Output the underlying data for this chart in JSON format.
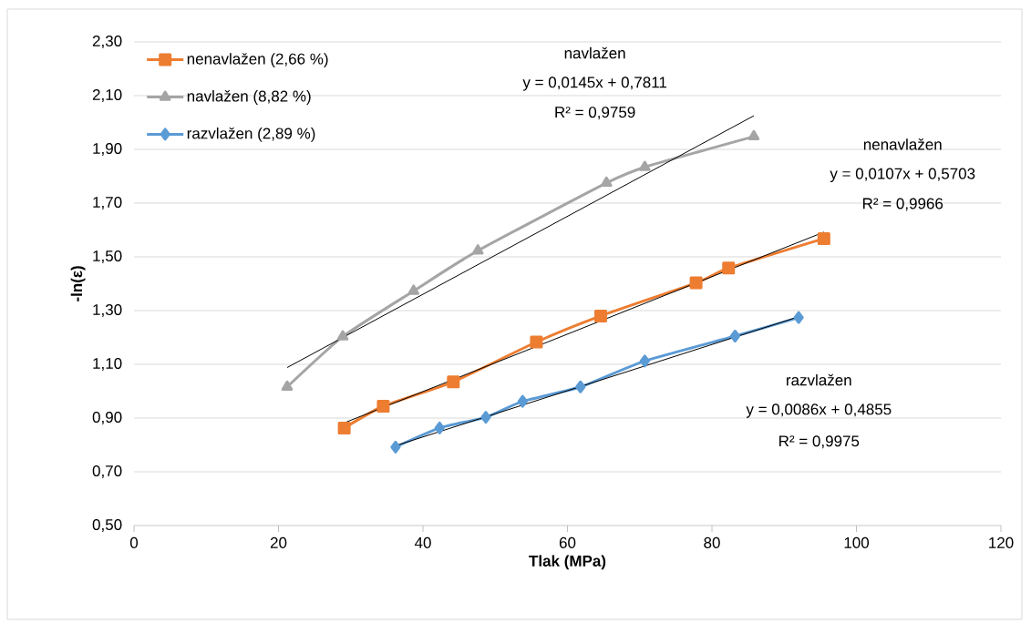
{
  "chart_data": {
    "type": "line",
    "xlabel": "Tlak (MPa)",
    "ylabel": "-ln(ε)",
    "xlim": [
      0,
      120
    ],
    "xticks": [
      0,
      20,
      40,
      60,
      80,
      100,
      120
    ],
    "ylim": [
      0.5,
      2.3
    ],
    "yticks": [
      {
        "value": 0.5,
        "label": "0,50"
      },
      {
        "value": 0.7,
        "label": "0,70"
      },
      {
        "value": 0.9,
        "label": "0,90"
      },
      {
        "value": 1.1,
        "label": "1,10"
      },
      {
        "value": 1.3,
        "label": "1,30"
      },
      {
        "value": 1.5,
        "label": "1,50"
      },
      {
        "value": 1.7,
        "label": "1,70"
      },
      {
        "value": 1.9,
        "label": "1,90"
      },
      {
        "value": 2.1,
        "label": "2,10"
      },
      {
        "value": 2.3,
        "label": "2,30"
      }
    ],
    "grid": "y",
    "legend": "top left",
    "line_style": "solid",
    "series": [
      {
        "name": "nenavlažen (2,66 %)",
        "color": "#ed7d31",
        "marker": "square",
        "x": [
          29.1,
          34.5,
          44.2,
          55.7,
          64.6,
          77.8,
          82.3,
          95.5
        ],
        "values": [
          0.863,
          0.944,
          1.035,
          1.183,
          1.28,
          1.403,
          1.458,
          1.568
        ]
      },
      {
        "name": "navlažen (8,82 %)",
        "color": "#a5a5a5",
        "marker": "triangle",
        "x": [
          21.2,
          28.9,
          38.7,
          47.6,
          65.4,
          70.7,
          85.8
        ],
        "values": [
          1.016,
          1.203,
          1.373,
          1.523,
          1.775,
          1.834,
          1.948
        ]
      },
      {
        "name": "razvlažen (2,89 %)",
        "color": "#5b9bd5",
        "marker": "diamond",
        "x": [
          36.2,
          42.3,
          48.7,
          53.8,
          61.8,
          70.7,
          83.2,
          92.0
        ],
        "values": [
          0.792,
          0.863,
          0.903,
          0.962,
          1.016,
          1.112,
          1.205,
          1.274
        ]
      },
      {
        "type": "line",
        "color": "#000000",
        "marker": "none",
        "x": [
          29.1,
          95.5
        ],
        "values": [
          0.882,
          1.592
        ]
      },
      {
        "type": "line",
        "color": "#000000",
        "marker": "none",
        "x": [
          21.2,
          85.8
        ],
        "values": [
          1.088,
          2.025
        ]
      },
      {
        "type": "line",
        "color": "#000000",
        "marker": "none",
        "x": [
          36.2,
          92.0
        ],
        "values": [
          0.797,
          1.277
        ]
      }
    ],
    "annotations": [
      "navlažen",
      "y = 0,0145x + 0,7811",
      "R² = 0,9759",
      "nenavlažen",
      "y = 0,0107x + 0,5703",
      "R² = 0,9966",
      "razvlažen",
      "y = 0,0086x + 0,4855",
      "R² = 0,9975"
    ]
  }
}
